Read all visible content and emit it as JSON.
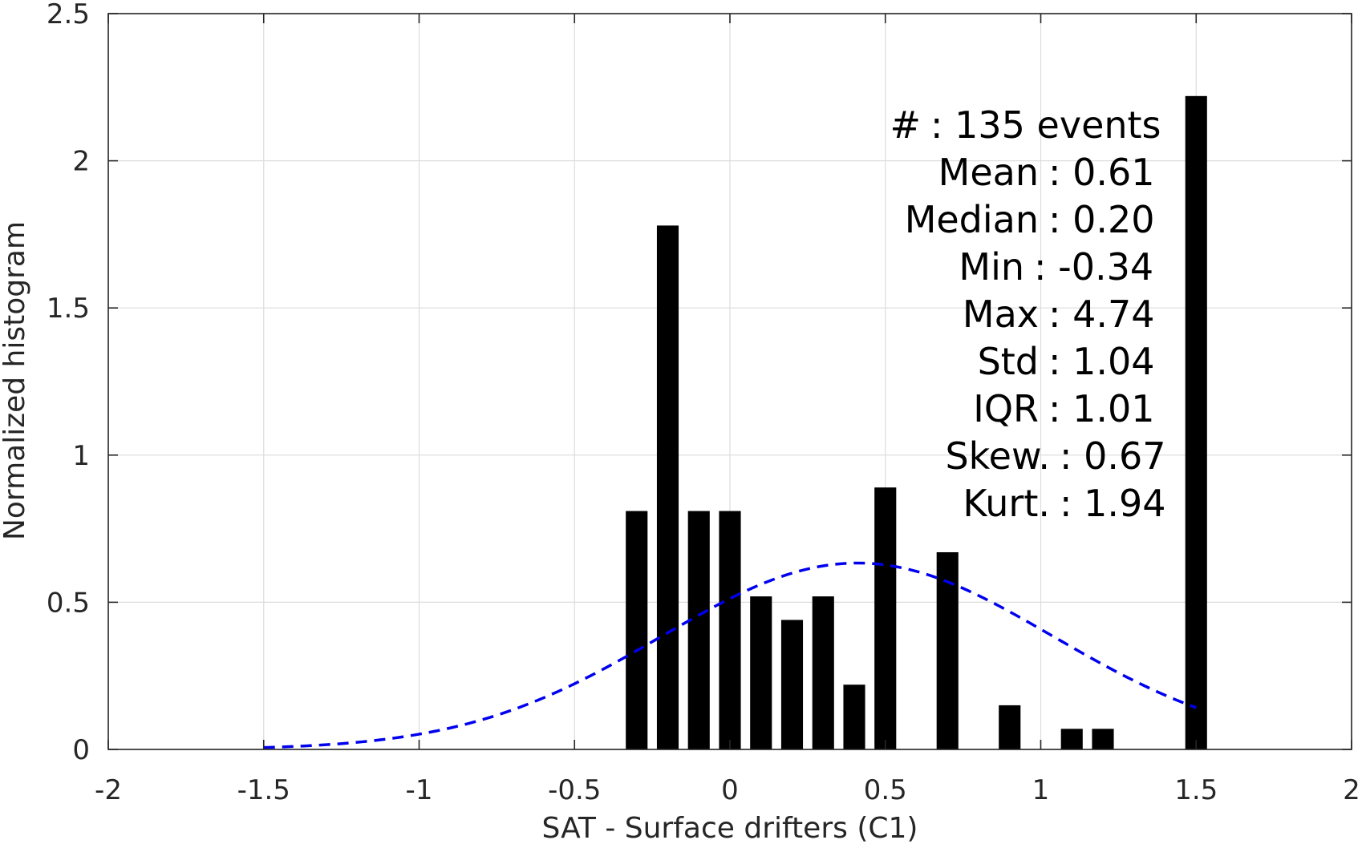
{
  "chart_data": {
    "type": "bar",
    "xlabel": "SAT - Surface drifters (C1)",
    "ylabel": "Normalized histogram",
    "xlim": [
      -2,
      2
    ],
    "ylim": [
      0,
      2.5
    ],
    "xticks": [
      -2,
      -1.5,
      -1,
      -0.5,
      0,
      0.5,
      1,
      1.5,
      2
    ],
    "yticks": [
      0,
      0.5,
      1,
      1.5,
      2,
      2.5
    ],
    "xtick_labels": [
      "-2",
      "-1.5",
      "-1",
      "-0.5",
      "0",
      "0.5",
      "1",
      "1.5",
      "2"
    ],
    "ytick_labels": [
      "0",
      "0.5",
      "1",
      "1.5",
      "2",
      "2.5"
    ],
    "grid": true,
    "bar_color": "#000000",
    "bar_width": 0.07,
    "bars": [
      {
        "x": -0.3,
        "value": 0.81
      },
      {
        "x": -0.2,
        "value": 1.78
      },
      {
        "x": -0.1,
        "value": 0.81
      },
      {
        "x": 0.0,
        "value": 0.81
      },
      {
        "x": 0.1,
        "value": 0.52
      },
      {
        "x": 0.2,
        "value": 0.44
      },
      {
        "x": 0.3,
        "value": 0.52
      },
      {
        "x": 0.4,
        "value": 0.22
      },
      {
        "x": 0.5,
        "value": 0.89
      },
      {
        "x": 0.7,
        "value": 0.67
      },
      {
        "x": 0.9,
        "value": 0.15
      },
      {
        "x": 1.1,
        "value": 0.07
      },
      {
        "x": 1.2,
        "value": 0.07
      },
      {
        "x": 1.5,
        "value": 2.22
      }
    ],
    "fit_curve": {
      "style": "dashed",
      "color": "#0000ee",
      "mean": 0.41,
      "std": 0.63,
      "x_range": [
        -1.5,
        1.5
      ]
    },
    "stats_box": [
      "#  : 135 events",
      "Mean : 0.61",
      "Median : 0.20",
      "Min : -0.34",
      "Max : 4.74",
      "Std : 1.04",
      "IQR : 1.01",
      "Skew. : 0.67",
      "Kurt. : 1.94"
    ]
  }
}
